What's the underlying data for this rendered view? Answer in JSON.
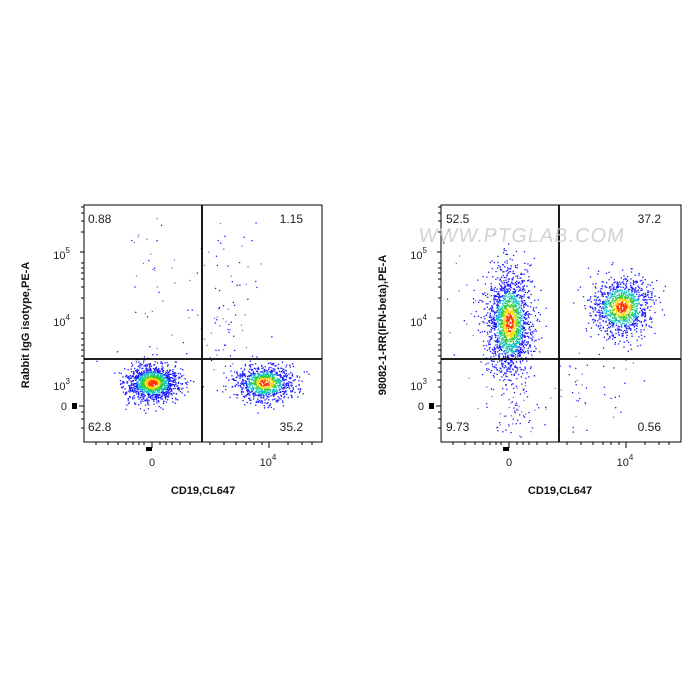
{
  "chart_data": [
    {
      "type": "scatter",
      "plot_kind": "flow cytometry density dot plot",
      "xlabel": "CD19,CL647",
      "ylabel": "Rabbit IgG isotype,PE-A",
      "x_scale": "biexponential",
      "y_scale": "biexponential",
      "x_ticks": [
        {
          "value": 0,
          "label": "0"
        },
        {
          "value": 10000,
          "base": "10",
          "exp": "4"
        }
      ],
      "y_ticks": [
        {
          "value": 0,
          "label": "0"
        },
        {
          "value": 1000,
          "base": "10",
          "exp": "3"
        },
        {
          "value": 10000,
          "base": "10",
          "exp": "4"
        },
        {
          "value": 100000,
          "base": "10",
          "exp": "5"
        }
      ],
      "quadrants": {
        "upper_left": "0.88",
        "upper_right": "1.15",
        "lower_left": "62.8",
        "lower_right": "35.2"
      },
      "gate": {
        "x": 4200,
        "y": 2500
      },
      "populations": [
        {
          "name": "lower-left",
          "x_center": 0,
          "y_center": 900
        },
        {
          "name": "lower-right",
          "x_center": 9000,
          "y_center": 900
        }
      ],
      "grid": false,
      "legend": "none"
    },
    {
      "type": "scatter",
      "plot_kind": "flow cytometry density dot plot",
      "xlabel": "CD19,CL647",
      "ylabel": "98082-1-RR(IFN-beta),PE-A",
      "x_scale": "biexponential",
      "y_scale": "biexponential",
      "x_ticks": [
        {
          "value": 0,
          "label": "0"
        },
        {
          "value": 10000,
          "base": "10",
          "exp": "4"
        }
      ],
      "y_ticks": [
        {
          "value": 0,
          "label": "0"
        },
        {
          "value": 1000,
          "base": "10",
          "exp": "3"
        },
        {
          "value": 10000,
          "base": "10",
          "exp": "4"
        },
        {
          "value": 100000,
          "base": "10",
          "exp": "5"
        }
      ],
      "quadrants": {
        "upper_left": "52.5",
        "upper_right": "37.2",
        "lower_left": "9.73",
        "lower_right": "0.56"
      },
      "gate": {
        "x": 4200,
        "y": 2500
      },
      "populations": [
        {
          "name": "upper-left",
          "x_center": 0,
          "y_center": 8000
        },
        {
          "name": "upper-right",
          "x_center": 9000,
          "y_center": 14000
        }
      ],
      "grid": false,
      "legend": "none"
    }
  ],
  "watermark": "WWW.PTGLAB.COM",
  "colors": {
    "density_low": "#1a1aff",
    "density_mid": "#12c3c3",
    "density_midhigh": "#33cc33",
    "density_high": "#ffd700",
    "density_max": "#ff3300",
    "gate_line": "#000000"
  }
}
